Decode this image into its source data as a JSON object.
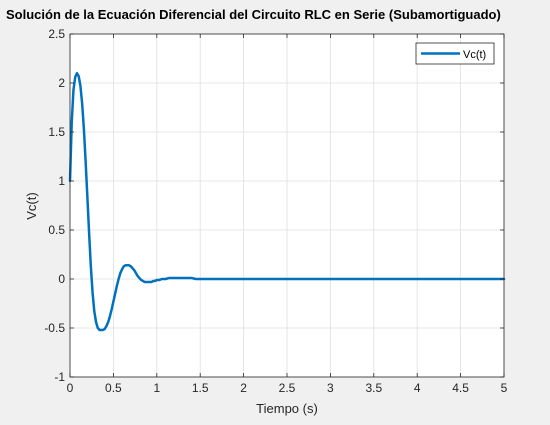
{
  "chart_data": {
    "type": "line",
    "title": "Solución de la Ecuación Diferencial del Circuito RLC en Serie (Subamortiguado)",
    "xlabel": "Tiempo (s)",
    "ylabel": "Vc(t)",
    "xlim": [
      0,
      5
    ],
    "ylim": [
      -1,
      2.5
    ],
    "xticks": [
      0,
      0.5,
      1,
      1.5,
      2,
      2.5,
      3,
      3.5,
      4,
      4.5,
      5
    ],
    "xtick_labels": [
      "0",
      "0.5",
      "1",
      "1.5",
      "2",
      "2.5",
      "3",
      "3.5",
      "4",
      "4.5",
      "5"
    ],
    "yticks": [
      -1,
      -0.5,
      0,
      0.5,
      1,
      1.5,
      2,
      2.5
    ],
    "ytick_labels": [
      "-1",
      "-0.5",
      "0",
      "0.5",
      "1",
      "1.5",
      "2",
      "2.5"
    ],
    "grid": true,
    "legend_position": "top-right",
    "series": [
      {
        "name": "Vc(t)",
        "color": "#0072BD",
        "x": [
          0,
          0.02,
          0.04,
          0.06,
          0.08,
          0.1,
          0.12,
          0.14,
          0.16,
          0.18,
          0.2,
          0.22,
          0.24,
          0.26,
          0.28,
          0.3,
          0.32,
          0.34,
          0.36,
          0.38,
          0.4,
          0.42,
          0.44,
          0.46,
          0.48,
          0.5,
          0.52,
          0.54,
          0.56,
          0.58,
          0.6,
          0.62,
          0.64,
          0.66,
          0.68,
          0.7,
          0.72,
          0.74,
          0.76,
          0.78,
          0.8,
          0.82,
          0.84,
          0.86,
          0.88,
          0.9,
          0.92,
          0.94,
          0.96,
          0.98,
          1.0,
          1.03,
          1.06,
          1.1,
          1.14,
          1.18,
          1.22,
          1.26,
          1.3,
          1.35,
          1.4,
          1.45,
          1.5,
          1.55,
          1.6,
          1.7,
          1.8,
          1.9,
          2.0,
          2.2,
          2.4,
          2.6,
          2.8,
          3.0,
          3.5,
          4.0,
          4.5,
          5.0
        ],
        "y": [
          1.0,
          1.6,
          1.93,
          2.06,
          2.1,
          2.07,
          1.97,
          1.79,
          1.53,
          1.2,
          0.84,
          0.47,
          0.13,
          -0.14,
          -0.33,
          -0.44,
          -0.5,
          -0.52,
          -0.52,
          -0.52,
          -0.51,
          -0.48,
          -0.44,
          -0.38,
          -0.31,
          -0.23,
          -0.15,
          -0.07,
          0.0,
          0.06,
          0.1,
          0.13,
          0.14,
          0.14,
          0.14,
          0.13,
          0.11,
          0.09,
          0.06,
          0.03,
          0.01,
          -0.01,
          -0.02,
          -0.03,
          -0.03,
          -0.03,
          -0.03,
          -0.03,
          -0.02,
          -0.02,
          -0.01,
          -0.01,
          0.0,
          0.0,
          0.01,
          0.01,
          0.01,
          0.01,
          0.01,
          0.01,
          0.01,
          0.0,
          0.0,
          0.0,
          0.0,
          0.0,
          0.0,
          0.0,
          0.0,
          0.0,
          0.0,
          0.0,
          0.0,
          0.0,
          0.0,
          0.0,
          0.0,
          0.0
        ]
      }
    ]
  }
}
